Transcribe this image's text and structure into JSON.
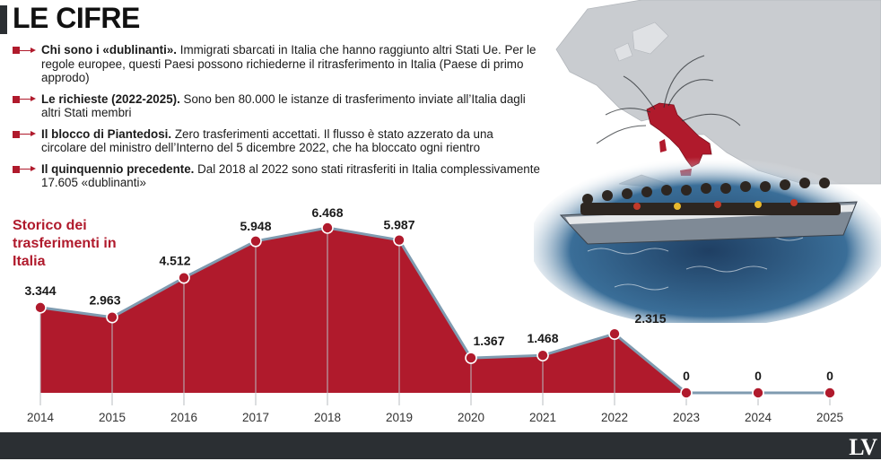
{
  "title": "LE CIFRE",
  "bullets": [
    {
      "bold": "Chi sono i «dublinanti».",
      "text": " Immigrati sbarcati in Italia che hanno raggiunto altri Stati Ue. Per le regole europee, questi Paesi possono richiederne il ritrasferimento in Italia (Paese di primo approdo)"
    },
    {
      "bold": "Le richieste (2022-2025).",
      "text": " Sono ben 80.000 le istanze di trasferimento inviate all’Italia dagli altri Stati membri"
    },
    {
      "bold": "Il blocco di Piantedosi.",
      "text": " Zero trasferimenti accettati. Il flusso è stato azzerato da una circolare del ministro dell’Interno del 5 dicembre 2022, che ha bloccato ogni rientro"
    },
    {
      "bold": "Il quinquennio precedente.",
      "text": " Dal 2018 al 2022 sono stati ritrasferiti in Italia complessivamente 17.605 «dublinanti»"
    }
  ],
  "chart_label": "Storico dei trasferimenti in Italia",
  "colors": {
    "accent": "#b01a2c",
    "line": "#7f9bb0",
    "dark": "#2b2f33"
  },
  "logo": "LV",
  "chart_data": {
    "type": "area",
    "title": "Storico dei trasferimenti in Italia",
    "xlabel": "",
    "ylabel": "",
    "x": [
      "2014",
      "2015",
      "2016",
      "2017",
      "2018",
      "2019",
      "2020",
      "2021",
      "2022",
      "2023",
      "2024",
      "2025"
    ],
    "values": [
      3344,
      2963,
      4512,
      5948,
      6468,
      5987,
      1367,
      1468,
      2315,
      0,
      0,
      0
    ],
    "data_labels": [
      "3.344",
      "2.963",
      "4.512",
      "5.948",
      "6.468",
      "5.987",
      "1.367",
      "1.468",
      "2.315",
      "0",
      "0",
      "0"
    ],
    "ylim": [
      0,
      7000
    ],
    "grid": false,
    "legend": "none"
  }
}
